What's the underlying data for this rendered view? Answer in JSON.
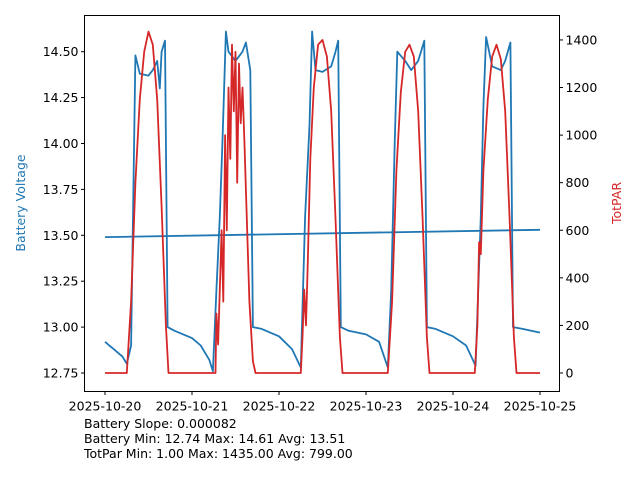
{
  "chart_data": {
    "type": "line",
    "title": "",
    "xlabel": "",
    "ylabel_left": "Battery Voltage",
    "ylabel_right": "TotPAR",
    "x_unit": "days since 2025-10-20",
    "x_ticks": [
      {
        "value": 0,
        "label": "2025-10-20"
      },
      {
        "value": 1,
        "label": "2025-10-21"
      },
      {
        "value": 2,
        "label": "2025-10-22"
      },
      {
        "value": 3,
        "label": "2025-10-23"
      },
      {
        "value": 4,
        "label": "2025-10-24"
      },
      {
        "value": 5,
        "label": "2025-10-25"
      }
    ],
    "xlim": [
      -0.23,
      5.23
    ],
    "ylim_left": [
      12.65,
      14.7
    ],
    "ylim_right": [
      -80,
      1500
    ],
    "y_ticks_left": [
      "12.75",
      "13.00",
      "13.25",
      "13.50",
      "13.75",
      "14.00",
      "14.25",
      "14.50"
    ],
    "y_ticks_right": [
      "0",
      "200",
      "400",
      "600",
      "800",
      "1000",
      "1200",
      "1400"
    ],
    "grid": false,
    "series": [
      {
        "name": "Battery Voltage",
        "axis": "left",
        "color": "#1f77b4",
        "points": [
          [
            0,
            12.92
          ],
          [
            0.05,
            12.9
          ],
          [
            0.1,
            12.88
          ],
          [
            0.15,
            12.86
          ],
          [
            0.2,
            12.84
          ],
          [
            0.25,
            12.8
          ],
          [
            0.3,
            12.9
          ],
          [
            0.35,
            14.48
          ],
          [
            0.4,
            14.38
          ],
          [
            0.5,
            14.37
          ],
          [
            0.55,
            14.4
          ],
          [
            0.6,
            14.45
          ],
          [
            0.63,
            14.3
          ],
          [
            0.65,
            14.5
          ],
          [
            0.69,
            14.56
          ],
          [
            0.72,
            13.0
          ],
          [
            0.8,
            12.98
          ],
          [
            0.9,
            12.96
          ],
          [
            1.0,
            12.94
          ],
          [
            1.1,
            12.9
          ],
          [
            1.2,
            12.82
          ],
          [
            1.24,
            12.76
          ],
          [
            1.28,
            13.2
          ],
          [
            1.32,
            13.6
          ],
          [
            1.35,
            14.0
          ],
          [
            1.39,
            14.61
          ],
          [
            1.42,
            14.5
          ],
          [
            1.5,
            14.45
          ],
          [
            1.58,
            14.5
          ],
          [
            1.62,
            14.55
          ],
          [
            1.67,
            14.4
          ],
          [
            1.7,
            13.0
          ],
          [
            1.8,
            12.99
          ],
          [
            2.0,
            12.95
          ],
          [
            2.15,
            12.88
          ],
          [
            2.25,
            12.78
          ],
          [
            2.3,
            13.6
          ],
          [
            2.35,
            14.1
          ],
          [
            2.38,
            14.61
          ],
          [
            2.42,
            14.4
          ],
          [
            2.5,
            14.39
          ],
          [
            2.6,
            14.42
          ],
          [
            2.65,
            14.5
          ],
          [
            2.68,
            14.56
          ],
          [
            2.71,
            13.0
          ],
          [
            2.8,
            12.98
          ],
          [
            3.0,
            12.96
          ],
          [
            3.15,
            12.92
          ],
          [
            3.25,
            12.78
          ],
          [
            3.29,
            13.2
          ],
          [
            3.33,
            14.0
          ],
          [
            3.36,
            14.5
          ],
          [
            3.45,
            14.45
          ],
          [
            3.52,
            14.4
          ],
          [
            3.6,
            14.45
          ],
          [
            3.67,
            14.56
          ],
          [
            3.7,
            13.0
          ],
          [
            3.8,
            12.99
          ],
          [
            4.0,
            12.95
          ],
          [
            4.15,
            12.9
          ],
          [
            4.26,
            12.79
          ],
          [
            4.32,
            13.6
          ],
          [
            4.35,
            14.2
          ],
          [
            4.38,
            14.58
          ],
          [
            4.45,
            14.42
          ],
          [
            4.55,
            14.4
          ],
          [
            4.6,
            14.45
          ],
          [
            4.66,
            14.55
          ],
          [
            4.69,
            13.0
          ],
          [
            4.8,
            12.99
          ],
          [
            5.0,
            12.97
          ]
        ]
      },
      {
        "name": "Battery Trend",
        "axis": "left",
        "color": "#1f77b4",
        "points": [
          [
            0,
            13.49
          ],
          [
            5,
            13.53
          ]
        ]
      },
      {
        "name": "TotPAR",
        "axis": "right",
        "color": "#d62728",
        "points": [
          [
            0,
            0
          ],
          [
            0.25,
            0
          ],
          [
            0.3,
            300
          ],
          [
            0.35,
            800
          ],
          [
            0.4,
            1150
          ],
          [
            0.45,
            1350
          ],
          [
            0.5,
            1435
          ],
          [
            0.55,
            1380
          ],
          [
            0.6,
            1150
          ],
          [
            0.65,
            700
          ],
          [
            0.7,
            200
          ],
          [
            0.73,
            0
          ],
          [
            1.27,
            0
          ],
          [
            1.28,
            250
          ],
          [
            1.3,
            120
          ],
          [
            1.32,
            350
          ],
          [
            1.34,
            600
          ],
          [
            1.36,
            300
          ],
          [
            1.38,
            1000
          ],
          [
            1.4,
            600
          ],
          [
            1.42,
            1200
          ],
          [
            1.44,
            900
          ],
          [
            1.46,
            1380
          ],
          [
            1.48,
            1100
          ],
          [
            1.5,
            1350
          ],
          [
            1.52,
            800
          ],
          [
            1.54,
            1300
          ],
          [
            1.56,
            1050
          ],
          [
            1.58,
            1200
          ],
          [
            1.6,
            1000
          ],
          [
            1.63,
            650
          ],
          [
            1.66,
            300
          ],
          [
            1.7,
            50
          ],
          [
            1.73,
            0
          ],
          [
            2.25,
            0
          ],
          [
            2.27,
            150
          ],
          [
            2.29,
            350
          ],
          [
            2.31,
            200
          ],
          [
            2.33,
            450
          ],
          [
            2.36,
            900
          ],
          [
            2.4,
            1200
          ],
          [
            2.45,
            1380
          ],
          [
            2.5,
            1400
          ],
          [
            2.55,
            1330
          ],
          [
            2.6,
            1100
          ],
          [
            2.65,
            650
          ],
          [
            2.7,
            150
          ],
          [
            2.73,
            0
          ],
          [
            3.25,
            0
          ],
          [
            3.3,
            300
          ],
          [
            3.35,
            850
          ],
          [
            3.4,
            1180
          ],
          [
            3.45,
            1350
          ],
          [
            3.5,
            1380
          ],
          [
            3.55,
            1330
          ],
          [
            3.6,
            1100
          ],
          [
            3.65,
            650
          ],
          [
            3.7,
            150
          ],
          [
            3.73,
            0
          ],
          [
            4.25,
            0
          ],
          [
            4.28,
            200
          ],
          [
            4.3,
            550
          ],
          [
            4.32,
            500
          ],
          [
            4.35,
            850
          ],
          [
            4.4,
            1150
          ],
          [
            4.45,
            1330
          ],
          [
            4.5,
            1380
          ],
          [
            4.55,
            1320
          ],
          [
            4.6,
            1100
          ],
          [
            4.65,
            650
          ],
          [
            4.7,
            150
          ],
          [
            4.73,
            0
          ],
          [
            5.0,
            0
          ]
        ]
      }
    ]
  },
  "stats": {
    "slope": "Battery Slope: 0.000082",
    "battery": "Battery Min: 12.74 Max: 14.61 Avg: 13.51",
    "totpar": "TotPar Min: 1.00 Max: 1435.00 Avg: 799.00"
  }
}
